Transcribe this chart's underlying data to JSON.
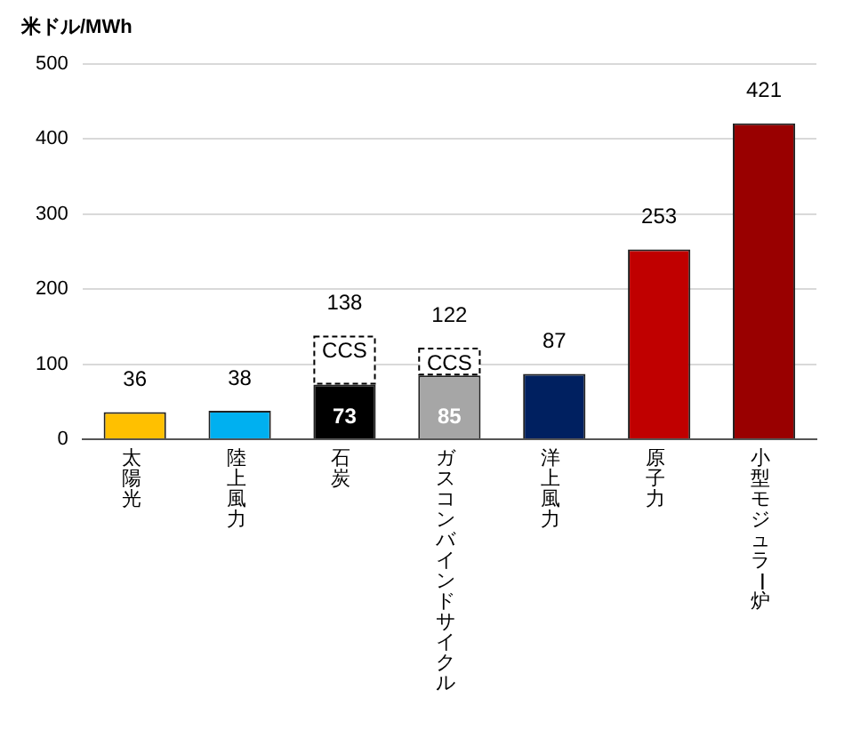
{
  "chart_data": {
    "type": "bar",
    "ylabel": "米ドル/MWh",
    "stacked": true,
    "categories": [
      "太陽光",
      "陸上風力",
      "石炭",
      "ガスコンバインドサイクル",
      "洋上風力",
      "原子力",
      "小型モジュラー炉"
    ],
    "series": [
      {
        "colors": [
          "#ffc000",
          "#00b0f0",
          "#000000",
          "#a6a6a6",
          "#002060",
          "#c00000",
          "#990000"
        ],
        "values": [
          36,
          38,
          73,
          85,
          87,
          253,
          421
        ],
        "value_labels": [
          null,
          null,
          "73",
          "85",
          null,
          null,
          null
        ]
      },
      {
        "name": "CCS",
        "color": "#ffffff",
        "line_style": "dashed",
        "values": [
          null,
          null,
          65,
          37,
          null,
          null,
          null
        ]
      }
    ],
    "totals": [
      "36",
      "38",
      "138",
      "122",
      "87",
      "253",
      "421"
    ],
    "ylim": [
      0,
      500
    ],
    "yticks": [
      0,
      100,
      200,
      300,
      400,
      500
    ],
    "grid": "y",
    "legend": false
  }
}
